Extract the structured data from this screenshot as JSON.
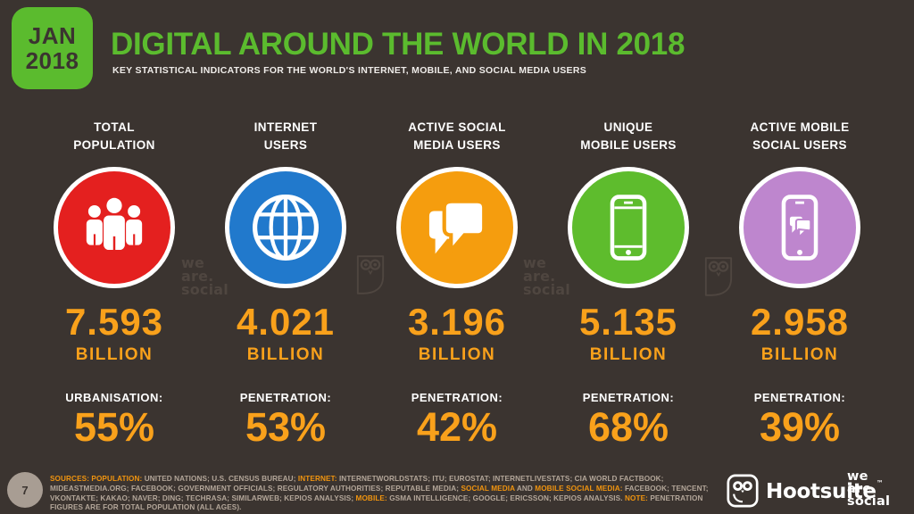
{
  "badge": {
    "month": "JAN",
    "year": "2018"
  },
  "header": {
    "title": "DIGITAL AROUND THE WORLD IN 2018",
    "subtitle": "KEY STATISTICAL INDICATORS FOR THE WORLD'S INTERNET, MOBILE, AND SOCIAL MEDIA USERS"
  },
  "columns": [
    {
      "label1": "TOTAL",
      "label2": "POPULATION",
      "icon": "people-icon",
      "circle_color": "#e4201f",
      "value": "7.593",
      "unit": "BILLION",
      "stat_label": "URBANISATION:",
      "stat_value": "55%"
    },
    {
      "label1": "INTERNET",
      "label2": "USERS",
      "icon": "globe-icon",
      "circle_color": "#2179cc",
      "value": "4.021",
      "unit": "BILLION",
      "stat_label": "PENETRATION:",
      "stat_value": "53%"
    },
    {
      "label1": "ACTIVE SOCIAL",
      "label2": "MEDIA USERS",
      "icon": "chat-bubbles-icon",
      "circle_color": "#f59d0e",
      "value": "3.196",
      "unit": "BILLION",
      "stat_label": "PENETRATION:",
      "stat_value": "42%"
    },
    {
      "label1": "UNIQUE",
      "label2": "MOBILE USERS",
      "icon": "mobile-phone-icon",
      "circle_color": "#5ebc2d",
      "value": "5.135",
      "unit": "BILLION",
      "stat_label": "PENETRATION:",
      "stat_value": "68%"
    },
    {
      "label1": "ACTIVE MOBILE",
      "label2": "SOCIAL USERS",
      "icon": "mobile-social-icon",
      "circle_color": "#be86ce",
      "value": "2.958",
      "unit": "BILLION",
      "stat_label": "PENETRATION:",
      "stat_value": "39%"
    }
  ],
  "watermarks": {
    "wearesocial_lines": {
      "0": "we",
      "1": "are.",
      "2": "social"
    }
  },
  "footer": {
    "page_number": "7",
    "sources_segments": [
      {
        "text": "SOURCES: ",
        "highlight": true
      },
      {
        "text": "POPULATION: ",
        "highlight": true
      },
      {
        "text": "UNITED NATIONS; U.S. CENSUS BUREAU; ",
        "highlight": false
      },
      {
        "text": "INTERNET: ",
        "highlight": true
      },
      {
        "text": "INTERNETWORLDSTATS; ITU; EUROSTAT; INTERNETLIVESTATS; CIA WORLD FACTBOOK; MIDEASTMEDIA.ORG; FACEBOOK; GOVERNMENT OFFICIALS; REGULATORY AUTHORITIES; REPUTABLE MEDIA; ",
        "highlight": false
      },
      {
        "text": "SOCIAL MEDIA",
        "highlight": true
      },
      {
        "text": " AND ",
        "highlight": false
      },
      {
        "text": "MOBILE SOCIAL MEDIA: ",
        "highlight": true
      },
      {
        "text": "FACEBOOK; TENCENT; VKONTAKTE; KAKAO; NAVER; DING; TECHRASA; SIMILARWEB; KEPIOS ANALYSIS; ",
        "highlight": false
      },
      {
        "text": "MOBILE: ",
        "highlight": true
      },
      {
        "text": "GSMA INTELLIGENCE; GOOGLE; ERICSSON; KEPIOS ANALYSIS. ",
        "highlight": false
      },
      {
        "text": "NOTE: ",
        "highlight": true
      },
      {
        "text": "PENETRATION FIGURES ARE FOR TOTAL POPULATION (ALL AGES).",
        "highlight": false
      }
    ],
    "hootsuite_label": "Hootsuite",
    "hootsuite_tm": "™",
    "wearesocial_logo_lines": {
      "0": "we",
      "1": "are.",
      "2": "social"
    }
  },
  "colors": {
    "background": "#3b3430",
    "brand_green": "#5bbb2e",
    "stat_orange": "#f9a11b",
    "footer_highlight": "#f0940f",
    "footer_text": "#b3a699",
    "watermark": "#4f4640",
    "page_circle": "#a89d93"
  },
  "chart_data": {
    "type": "table",
    "title": "Digital Around the World in 2018",
    "subtitle": "Key statistical indicators for the world's internet, mobile, and social media users",
    "categories": [
      "Total Population",
      "Internet Users",
      "Active Social Media Users",
      "Unique Mobile Users",
      "Active Mobile Social Users"
    ],
    "series": [
      {
        "name": "Users (billions)",
        "values": [
          7.593,
          4.021,
          3.196,
          5.135,
          2.958
        ]
      },
      {
        "name": "Urbanisation / Penetration (%)",
        "values": [
          55,
          53,
          42,
          68,
          39
        ]
      }
    ],
    "date": "Jan 2018"
  }
}
